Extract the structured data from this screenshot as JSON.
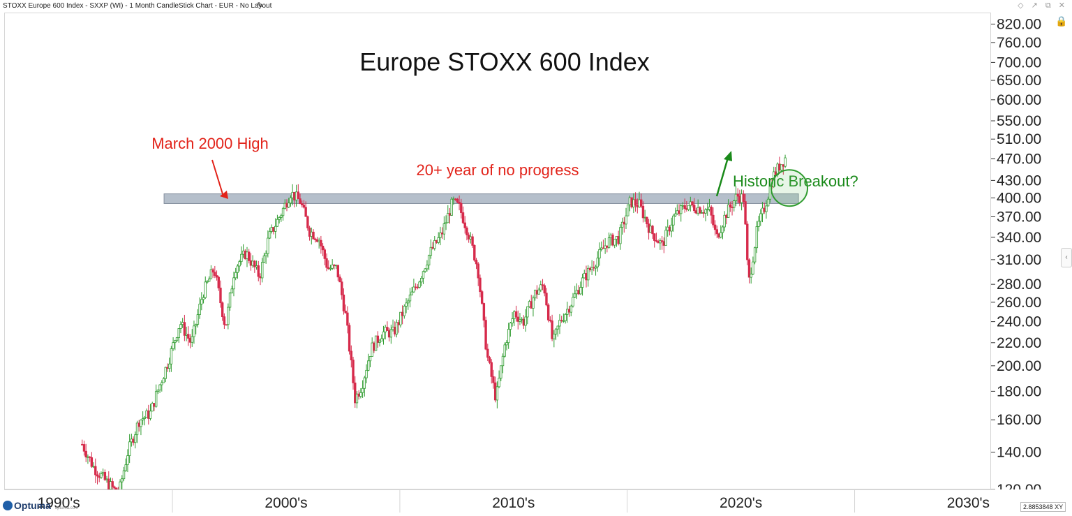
{
  "window": {
    "title": "STOXX Europe 600 Index - SXXP (WI) - 1 Month CandleStick Chart - EUR - No Layout",
    "pencil_icon": "pencil-icon",
    "window_icons": "◇ ↗ ⧉ ✕"
  },
  "brand": {
    "logo": "Optuma",
    "logo_url_text": "optuma.com"
  },
  "readout": {
    "value": "2.8853848",
    "label": "XY"
  },
  "colors": {
    "up": "#2e9b2e",
    "down": "#d62a4b",
    "band": "#a9b4c2",
    "annotation_red": "#e2231a",
    "annotation_green": "#1a8a1a"
  },
  "chart_data": {
    "type": "candlestick",
    "title": "Europe STOXX 600 Index",
    "scale": "log",
    "ylim": [
      120,
      860
    ],
    "xlim": [
      1987.6,
      2031.0
    ],
    "y_ticks": [
      "820.00",
      "760.00",
      "700.00",
      "650.00",
      "600.00",
      "550.00",
      "510.00",
      "470.00",
      "430.00",
      "400.00",
      "370.00",
      "340.00",
      "310.00",
      "280.00",
      "260.00",
      "240.00",
      "220.00",
      "200.00",
      "180.00",
      "160.00",
      "140.00",
      "120.00"
    ],
    "x_ticks": [
      {
        "label": "1990's",
        "at": 1990
      },
      {
        "label": "2000's",
        "at": 2000
      },
      {
        "label": "2010's",
        "at": 2010
      },
      {
        "label": "2020's",
        "at": 2020
      },
      {
        "label": "2030's",
        "at": 2030
      }
    ],
    "resistance_band": {
      "low": 392,
      "high": 408,
      "x_start": 1994.6,
      "x_end": 2022.5
    },
    "annotations": [
      {
        "text": "March 2000 High",
        "x": 2000.17,
        "y": 410
      },
      {
        "text": "20+ year of no progress"
      },
      {
        "text": "Historic Breakout?",
        "x": 2021.5,
        "y": 415
      }
    ],
    "series_path": [
      [
        1991.0,
        145
      ],
      [
        1991.5,
        132
      ],
      [
        1992.0,
        125
      ],
      [
        1992.6,
        118
      ],
      [
        1993.0,
        140
      ],
      [
        1993.5,
        160
      ],
      [
        1994.0,
        165
      ],
      [
        1994.3,
        180
      ],
      [
        1994.8,
        205
      ],
      [
        1995.3,
        240
      ],
      [
        1995.8,
        220
      ],
      [
        1996.3,
        270
      ],
      [
        1996.8,
        300
      ],
      [
        1997.3,
        235
      ],
      [
        1997.7,
        300
      ],
      [
        1998.2,
        320
      ],
      [
        1998.8,
        290
      ],
      [
        1999.2,
        340
      ],
      [
        1999.8,
        380
      ],
      [
        2000.17,
        410
      ],
      [
        2000.6,
        395
      ],
      [
        2001.0,
        350
      ],
      [
        2001.4,
        340
      ],
      [
        2001.8,
        300
      ],
      [
        2002.2,
        300
      ],
      [
        2002.6,
        245
      ],
      [
        2003.0,
        175
      ],
      [
        2003.3,
        185
      ],
      [
        2003.7,
        215
      ],
      [
        2004.2,
        230
      ],
      [
        2004.7,
        230
      ],
      [
        2005.2,
        255
      ],
      [
        2005.8,
        285
      ],
      [
        2006.3,
        320
      ],
      [
        2006.8,
        345
      ],
      [
        2007.3,
        395
      ],
      [
        2007.6,
        385
      ],
      [
        2008.0,
        345
      ],
      [
        2008.4,
        300
      ],
      [
        2008.8,
        210
      ],
      [
        2009.2,
        175
      ],
      [
        2009.6,
        220
      ],
      [
        2010.0,
        250
      ],
      [
        2010.4,
        240
      ],
      [
        2010.9,
        270
      ],
      [
        2011.3,
        280
      ],
      [
        2011.7,
        220
      ],
      [
        2012.0,
        240
      ],
      [
        2012.5,
        260
      ],
      [
        2013.0,
        285
      ],
      [
        2013.6,
        310
      ],
      [
        2014.1,
        335
      ],
      [
        2014.6,
        340
      ],
      [
        2015.1,
        395
      ],
      [
        2015.5,
        390
      ],
      [
        2016.0,
        350
      ],
      [
        2016.5,
        330
      ],
      [
        2017.0,
        370
      ],
      [
        2017.6,
        390
      ],
      [
        2018.1,
        385
      ],
      [
        2018.6,
        380
      ],
      [
        2018.9,
        340
      ],
      [
        2019.3,
        375
      ],
      [
        2019.8,
        405
      ],
      [
        2020.1,
        400
      ],
      [
        2020.3,
        280
      ],
      [
        2020.7,
        355
      ],
      [
        2021.0,
        385
      ],
      [
        2021.4,
        440
      ],
      [
        2021.7,
        460
      ],
      [
        2021.95,
        475
      ]
    ],
    "breakout_circle": {
      "x": 2022.1,
      "y": 418
    }
  }
}
